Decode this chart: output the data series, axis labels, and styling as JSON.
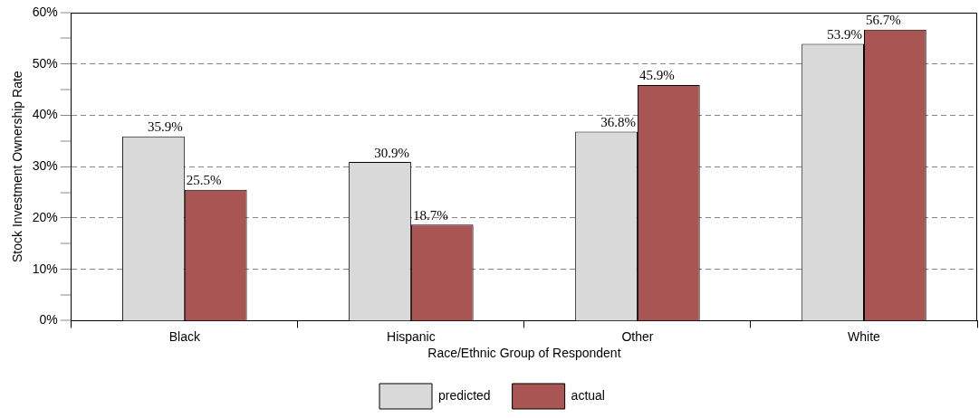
{
  "chart_data": {
    "type": "bar",
    "xlabel": "Race/Ethnic Group of Respondent",
    "ylabel": "Stock Investment Ownership Rate",
    "categories": [
      "Black",
      "Hispanic",
      "Other",
      "White"
    ],
    "series": [
      {
        "name": "predicted",
        "color": "#d9d9d9",
        "values": [
          35.9,
          30.9,
          36.8,
          53.9
        ],
        "value_labels": [
          "35.9%",
          "30.9%",
          "36.8%",
          "53.9%"
        ]
      },
      {
        "name": "actual",
        "color": "#a85553",
        "values": [
          25.5,
          18.7,
          45.9,
          56.7
        ],
        "value_labels": [
          "25.5%",
          "18.7%",
          "45.9%",
          "56.7%"
        ]
      }
    ],
    "ylim": [
      0,
      60
    ],
    "yticks": [
      {
        "value": 0,
        "label": "0%"
      },
      {
        "value": 5,
        "label": null
      },
      {
        "value": 10,
        "label": "10%"
      },
      {
        "value": 15,
        "label": null
      },
      {
        "value": 20,
        "label": "20%"
      },
      {
        "value": 25,
        "label": null
      },
      {
        "value": 30,
        "label": "30%"
      },
      {
        "value": 35,
        "label": null
      },
      {
        "value": 40,
        "label": "40%"
      },
      {
        "value": 45,
        "label": null
      },
      {
        "value": 50,
        "label": "50%"
      },
      {
        "value": 55,
        "label": null
      },
      {
        "value": 60,
        "label": "60%"
      }
    ],
    "grid": "y",
    "legend": "bottom"
  }
}
